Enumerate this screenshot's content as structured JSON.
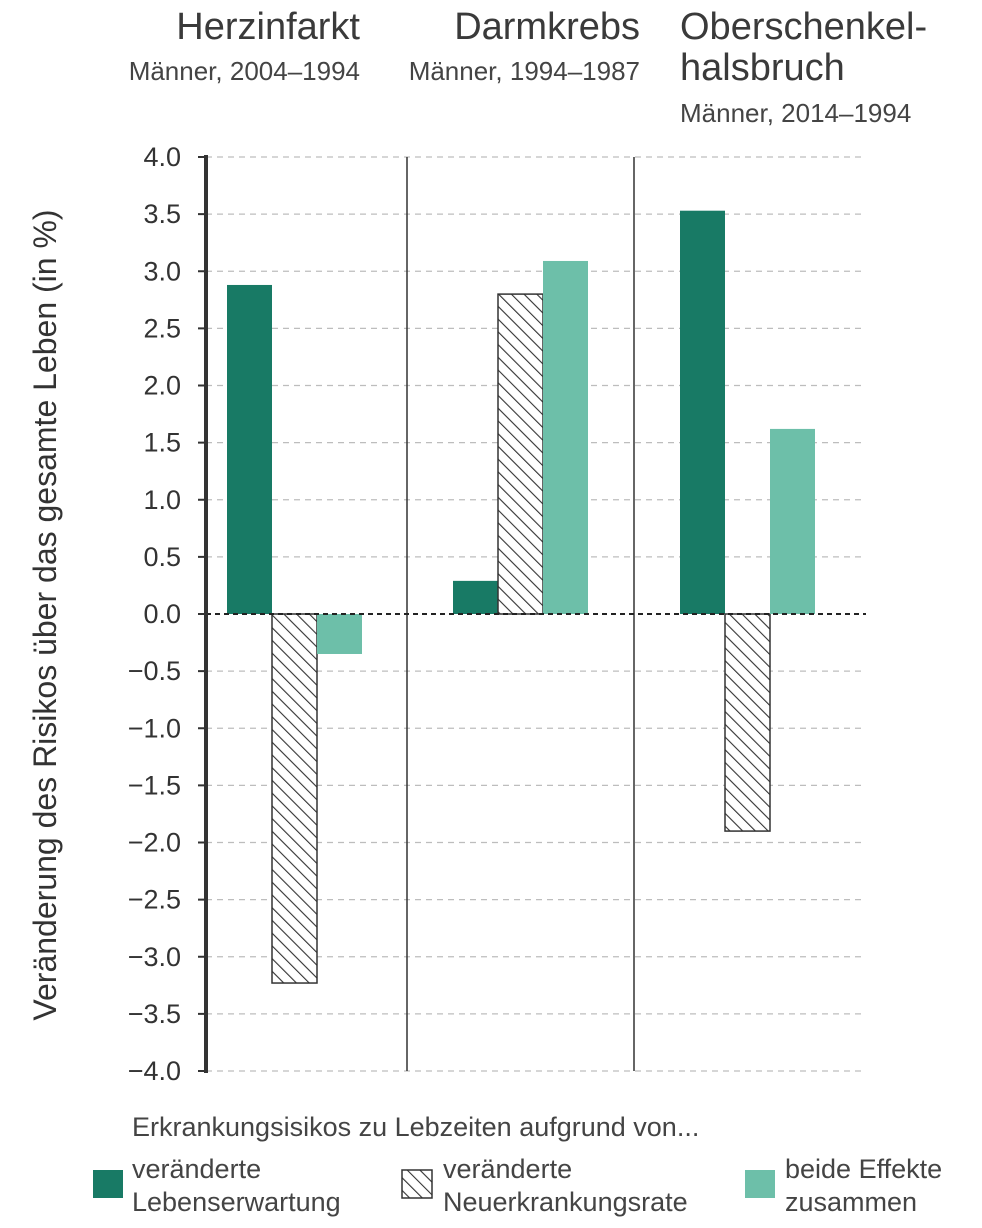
{
  "chart_data": {
    "type": "bar",
    "ylabel": "Veränderung des Risikos über das gesamte Leben (in %)",
    "ylim": [
      -4.0,
      4.0
    ],
    "yticks": [
      "4.0",
      "3.5",
      "3.0",
      "2.5",
      "2.0",
      "1.5",
      "1.0",
      "0.5",
      "0.0",
      "−0.5",
      "−1.0",
      "−1.5",
      "−2.0",
      "−2.5",
      "−3.0",
      "−3.5",
      "−4.0"
    ],
    "grid": true,
    "groups": [
      {
        "title": "Herzinfarkt",
        "subtitle": "Männer, 2004–1994"
      },
      {
        "title": "Darmkrebs",
        "subtitle": "Männer, 1994–1987"
      },
      {
        "title_line1": "Oberschenkel-",
        "title_line2": "halsbruch",
        "subtitle": "Männer, 2014–1994"
      }
    ],
    "series": [
      {
        "name_line1": "veränderte",
        "name_line2": "Lebenserwartung",
        "color": "#187a65",
        "pattern": "solid",
        "values": [
          2.88,
          0.29,
          3.53
        ]
      },
      {
        "name_line1": "veränderte",
        "name_line2": "Neuerkrankungsrate",
        "color": "#ffffff",
        "pattern": "hatched",
        "values": [
          -3.23,
          2.8,
          -1.9
        ]
      },
      {
        "name_line1": "beide Effekte",
        "name_line2": "zusammen",
        "color": "#6dbfa9",
        "pattern": "solid",
        "values": [
          -0.35,
          3.09,
          1.62
        ]
      }
    ],
    "legend": {
      "title": "Erkrankungsisikos zu Lebzeiten aufgrund von...",
      "placement": "bottom"
    }
  }
}
